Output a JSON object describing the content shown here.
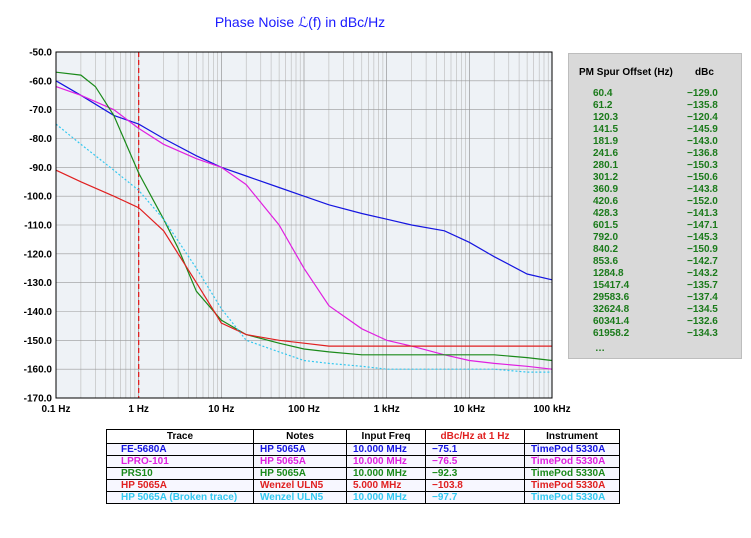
{
  "chart_data": {
    "type": "line",
    "title": "Phase  Noise ℒ(f) in dBc/Hz",
    "xscale": "log",
    "xlim": [
      0.1,
      100000
    ],
    "ylim": [
      -170,
      -50
    ],
    "x_tick_labels": [
      "0.1 Hz",
      "1 Hz",
      "10 Hz",
      "100 Hz",
      "1 kHz",
      "10 kHz",
      "100 kHz"
    ],
    "y_tick_labels": [
      "-50.0",
      "-60.0",
      "-70.0",
      "-80.0",
      "-90.0",
      "-100.0",
      "-110.0",
      "-120.0",
      "-130.0",
      "-140.0",
      "-150.0",
      "-160.0",
      "-170.0"
    ],
    "grid": true,
    "marker_line": {
      "x": 1.0,
      "color": "#e02020",
      "style": "dashed"
    },
    "series": [
      {
        "name": "FE-5680A",
        "color": "#1515e0",
        "x": [
          0.1,
          0.2,
          0.5,
          1,
          2,
          5,
          10,
          20,
          50,
          100,
          200,
          500,
          1000,
          2000,
          5000,
          10000,
          20000,
          50000,
          100000
        ],
        "y": [
          -60,
          -65,
          -72,
          -75,
          -80,
          -86,
          -90,
          -93,
          -97,
          -100,
          -103,
          -106,
          -108,
          -110,
          -112,
          -116,
          -121,
          -127,
          -129
        ]
      },
      {
        "name": "LPRO-101",
        "color": "#e020e0",
        "x": [
          0.1,
          0.2,
          0.5,
          1,
          2,
          5,
          10,
          20,
          50,
          100,
          200,
          500,
          1000,
          2000,
          5000,
          10000,
          20000,
          50000,
          100000
        ],
        "y": [
          -62,
          -65,
          -70,
          -76.5,
          -82,
          -87,
          -90,
          -96,
          -110,
          -125,
          -138,
          -146,
          -150,
          -152,
          -155,
          -157,
          -158,
          -159,
          -160
        ]
      },
      {
        "name": "PRS10",
        "color": "#1a8a1a",
        "x": [
          0.1,
          0.2,
          0.3,
          0.5,
          1,
          2,
          3,
          5,
          10,
          20,
          50,
          100,
          200,
          500,
          1000,
          2000,
          5000,
          10000,
          20000,
          50000,
          100000
        ],
        "y": [
          -57,
          -58,
          -62,
          -72,
          -92,
          -108,
          -118,
          -133,
          -143,
          -148,
          -151,
          -153,
          -154,
          -155,
          -155,
          -155,
          -155,
          -155,
          -155,
          -156,
          -157
        ]
      },
      {
        "name": "HP 5065A",
        "color": "#e02020",
        "x": [
          0.1,
          0.2,
          0.5,
          1,
          2,
          5,
          10,
          20,
          50,
          100,
          200,
          500,
          1000,
          2000,
          5000,
          10000,
          20000,
          50000,
          100000
        ],
        "y": [
          -91,
          -95,
          -100,
          -104,
          -112,
          -130,
          -144,
          -148,
          -150,
          -151,
          -152,
          -152,
          -152,
          -152,
          -152,
          -152,
          -152,
          -152,
          -152
        ]
      },
      {
        "name": "HP 5065A (Broken trace)",
        "color": "#33c8f0",
        "x": [
          0.1,
          0.2,
          0.5,
          1,
          2,
          5,
          10,
          20,
          50,
          100,
          200,
          500,
          1000,
          2000,
          5000,
          10000,
          20000,
          50000,
          100000
        ],
        "y": [
          -75,
          -82,
          -91,
          -98,
          -108,
          -125,
          -139,
          -150,
          -154,
          -157,
          -158,
          -159,
          -160,
          -160,
          -160,
          -160,
          -160,
          -161,
          -161
        ]
      }
    ]
  },
  "spur_table": {
    "header_offset": "PM Spur Offset (Hz)",
    "header_dbc": "dBc",
    "rows": [
      {
        "offset": "60.4",
        "dbc": "−129.0"
      },
      {
        "offset": "61.2",
        "dbc": "−135.8"
      },
      {
        "offset": "120.3",
        "dbc": "−120.4"
      },
      {
        "offset": "141.5",
        "dbc": "−145.9"
      },
      {
        "offset": "181.9",
        "dbc": "−143.0"
      },
      {
        "offset": "241.6",
        "dbc": "−136.8"
      },
      {
        "offset": "280.1",
        "dbc": "−150.3"
      },
      {
        "offset": "301.2",
        "dbc": "−150.6"
      },
      {
        "offset": "360.9",
        "dbc": "−143.8"
      },
      {
        "offset": "420.6",
        "dbc": "−152.0"
      },
      {
        "offset": "428.3",
        "dbc": "−141.3"
      },
      {
        "offset": "601.5",
        "dbc": "−147.1"
      },
      {
        "offset": "792.0",
        "dbc": "−145.3"
      },
      {
        "offset": "840.2",
        "dbc": "−150.9"
      },
      {
        "offset": "853.6",
        "dbc": "−142.7"
      },
      {
        "offset": "1284.8",
        "dbc": "−143.2"
      },
      {
        "offset": "15417.4",
        "dbc": "−135.7"
      },
      {
        "offset": "29583.6",
        "dbc": "−137.4"
      },
      {
        "offset": "32624.8",
        "dbc": "−134.5"
      },
      {
        "offset": "60341.4",
        "dbc": "−132.6"
      },
      {
        "offset": "61958.2",
        "dbc": "−134.3"
      }
    ],
    "more": "…",
    "color": "#1a7a1a"
  },
  "legend_table": {
    "headers": {
      "trace": "Trace",
      "notes": "Notes",
      "freq": "Input Freq",
      "dbc": "dBc/Hz at 1 Hz",
      "instrument": "Instrument"
    },
    "dbc_header_color": "#e02020",
    "rows": [
      {
        "trace": "FE-5680A",
        "notes": "HP 5065A",
        "freq": "10.000 MHz",
        "dbc": "−75.1",
        "instrument": "TimePod 5330A",
        "color": "#1515e0"
      },
      {
        "trace": "LPRO-101",
        "notes": "HP 5065A",
        "freq": "10.000 MHz",
        "dbc": "−76.5",
        "instrument": "TimePod 5330A",
        "color": "#e020e0"
      },
      {
        "trace": "PRS10",
        "notes": "HP 5065A",
        "freq": "10.000 MHz",
        "dbc": "−92.3",
        "instrument": "TimePod 5330A",
        "color": "#1a8a1a"
      },
      {
        "trace": "HP 5065A",
        "notes": "Wenzel ULN5",
        "freq": "5.000 MHz",
        "dbc": "−103.8",
        "instrument": "TimePod 5330A",
        "color": "#e02020"
      },
      {
        "trace": "HP 5065A (Broken trace)",
        "notes": "Wenzel ULN5",
        "freq": "10.000 MHz",
        "dbc": "−97.7",
        "instrument": "TimePod 5330A",
        "color": "#33c8f0"
      }
    ]
  }
}
